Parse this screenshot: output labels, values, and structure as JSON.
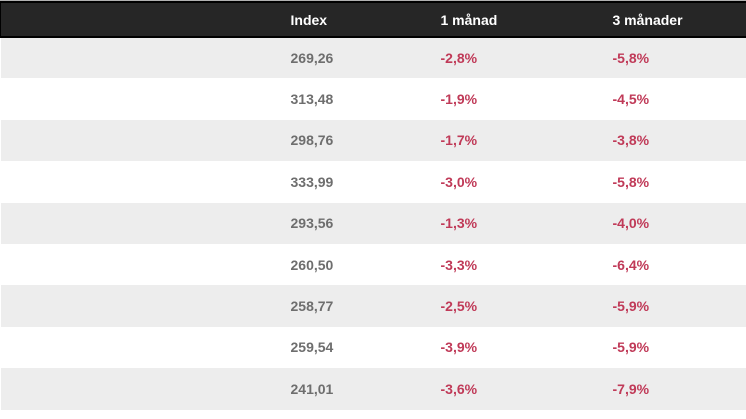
{
  "table": {
    "columns": [
      {
        "label": ""
      },
      {
        "label": "Index"
      },
      {
        "label": "1 månad"
      },
      {
        "label": "3 månader"
      }
    ],
    "rows": [
      {
        "index": "269,26",
        "one_month": "-2,8%",
        "three_months": "-5,8%"
      },
      {
        "index": "313,48",
        "one_month": "-1,9%",
        "three_months": "-4,5%"
      },
      {
        "index": "298,76",
        "one_month": "-1,7%",
        "three_months": "-3,8%"
      },
      {
        "index": "333,99",
        "one_month": "-3,0%",
        "three_months": "-5,8%"
      },
      {
        "index": "293,56",
        "one_month": "-1,3%",
        "three_months": "-4,0%"
      },
      {
        "index": "260,50",
        "one_month": "-3,3%",
        "three_months": "-6,4%"
      },
      {
        "index": "258,77",
        "one_month": "-2,5%",
        "three_months": "-5,9%"
      },
      {
        "index": "259,54",
        "one_month": "-3,9%",
        "three_months": "-5,9%"
      },
      {
        "index": "241,01",
        "one_month": "-3,6%",
        "three_months": "-7,9%"
      }
    ]
  },
  "colors": {
    "header_bg": "#262626",
    "header_text": "#ffffff",
    "row_alt_bg": "#ededed",
    "row_bg": "#ffffff",
    "index_value_text": "#6e6e6e",
    "negative_value_text": "#c03a58",
    "border_black": "#000000",
    "top_line": "#b0b0b0"
  },
  "chart_data": {
    "type": "table",
    "columns": [
      "Index",
      "1 månad",
      "3 månader"
    ],
    "index_values": [
      269.26,
      313.48,
      298.76,
      333.99,
      293.56,
      260.5,
      258.77,
      259.54,
      241.01
    ],
    "change_1_month_pct": [
      -2.8,
      -1.9,
      -1.7,
      -3.0,
      -1.3,
      -3.3,
      -2.5,
      -3.9,
      -3.6
    ],
    "change_3_months_pct": [
      -5.8,
      -4.5,
      -3.8,
      -5.8,
      -4.0,
      -6.4,
      -5.9,
      -5.9,
      -7.9
    ]
  }
}
